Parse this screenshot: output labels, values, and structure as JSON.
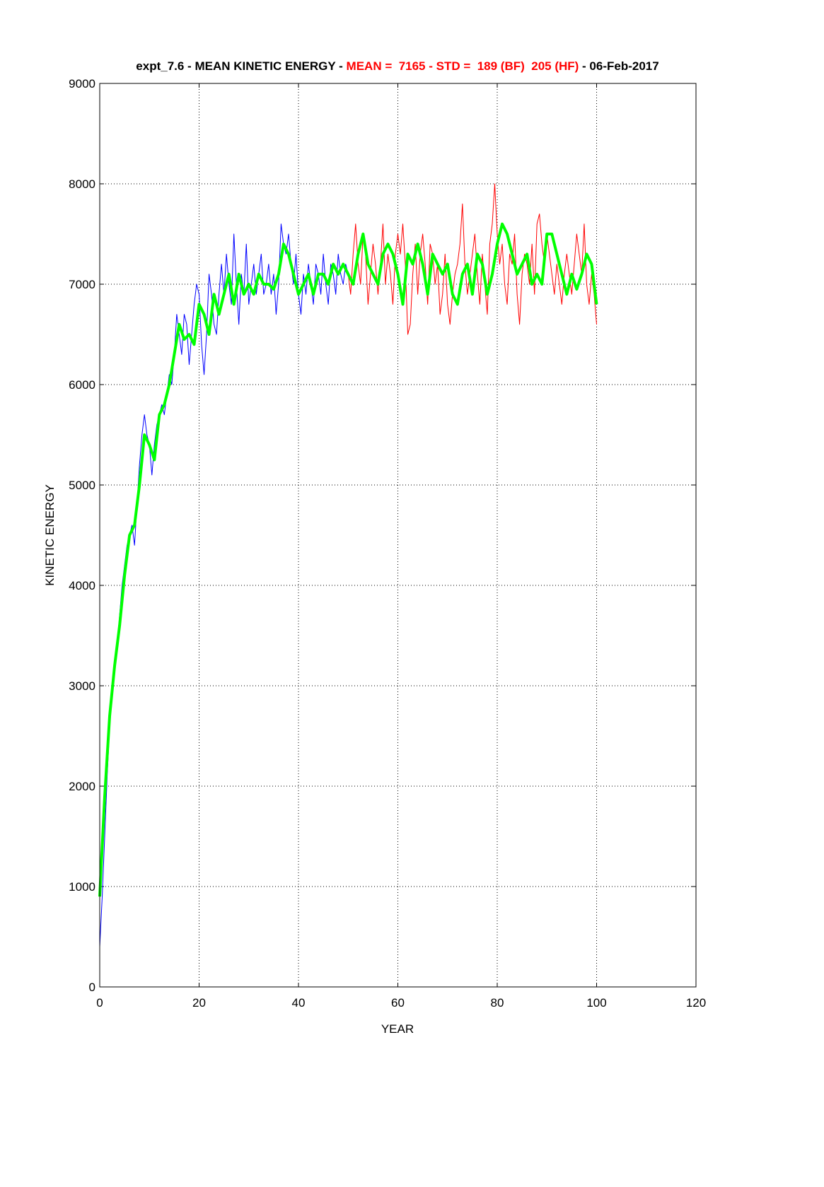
{
  "chart_data": {
    "type": "line",
    "title": [
      {
        "text": "expt_7.6 - MEAN KINETIC ENERGY - ",
        "color": "#000000"
      },
      {
        "text": "MEAN =  7165 - STD =  189 (BF)  205 (HF)",
        "color": "#ff0000"
      },
      {
        "text": " - 06-Feb-2017",
        "color": "#000000"
      }
    ],
    "xlabel": "YEAR",
    "ylabel": "KINETIC ENERGY",
    "xlim": [
      0,
      120
    ],
    "xticks": [
      0,
      20,
      40,
      60,
      80,
      100,
      120
    ],
    "ylim": [
      0,
      9000
    ],
    "yticks": [
      0,
      1000,
      2000,
      3000,
      4000,
      5000,
      6000,
      7000,
      8000,
      9000
    ],
    "grid": true,
    "series": [
      {
        "color": "#0000ff",
        "width": 1,
        "x": [
          0,
          0.5,
          1,
          1.5,
          2,
          2.5,
          3,
          3.5,
          4,
          4.5,
          5,
          5.5,
          6,
          6.5,
          7,
          7.5,
          8,
          8.5,
          9,
          9.5,
          10,
          10.5,
          11,
          11.5,
          12,
          12.5,
          13,
          13.5,
          14,
          14.5,
          15,
          15.5,
          16,
          16.5,
          17,
          17.5,
          18,
          18.5,
          19,
          19.5,
          20,
          20.5,
          21,
          21.5,
          22,
          22.5,
          23,
          23.5,
          24,
          24.5,
          25,
          25.5,
          26,
          26.5,
          27,
          27.5,
          28,
          28.5,
          29,
          29.5,
          30,
          30.5,
          31,
          31.5,
          32,
          32.5,
          33,
          33.5,
          34,
          34.5,
          35,
          35.5,
          36,
          36.5,
          37,
          37.5,
          38,
          38.5,
          39,
          39.5,
          40,
          40.5,
          41,
          41.5,
          42,
          42.5,
          43,
          43.5,
          44,
          44.5,
          45,
          45.5,
          46,
          46.5,
          47,
          47.5,
          48,
          48.5,
          49,
          49.5,
          50
        ],
        "values": [
          400,
          900,
          1500,
          2100,
          2600,
          2900,
          3200,
          3400,
          3700,
          4000,
          4200,
          4400,
          4500,
          4600,
          4400,
          4800,
          5200,
          5500,
          5700,
          5500,
          5400,
          5100,
          5400,
          5600,
          5700,
          5800,
          5700,
          5900,
          6100,
          6000,
          6300,
          6700,
          6500,
          6300,
          6700,
          6600,
          6200,
          6500,
          6800,
          7000,
          6900,
          6400,
          6100,
          6500,
          7100,
          6900,
          6600,
          6500,
          6900,
          7200,
          6900,
          7300,
          7000,
          6800,
          7500,
          7000,
          6600,
          7100,
          6900,
          7400,
          6800,
          7000,
          7200,
          6900,
          7100,
          7300,
          6900,
          7000,
          7200,
          6900,
          7100,
          6700,
          7000,
          7600,
          7400,
          7300,
          7500,
          7200,
          7000,
          7300,
          6900,
          6700,
          7100,
          6900,
          7200,
          7000,
          6800,
          7200,
          7100,
          6900,
          7300,
          7000,
          6800,
          7200,
          7100,
          6900,
          7300,
          7100,
          7000,
          7200,
          7100
        ]
      },
      {
        "color": "#ff0000",
        "width": 1,
        "x": [
          50,
          50.5,
          51,
          51.5,
          52,
          52.5,
          53,
          53.5,
          54,
          54.5,
          55,
          55.5,
          56,
          56.5,
          57,
          57.5,
          58,
          58.5,
          59,
          59.5,
          60,
          60.5,
          61,
          61.5,
          62,
          62.5,
          63,
          63.5,
          64,
          64.5,
          65,
          65.5,
          66,
          66.5,
          67,
          67.5,
          68,
          68.5,
          69,
          69.5,
          70,
          70.5,
          71,
          71.5,
          72,
          72.5,
          73,
          73.5,
          74,
          74.5,
          75,
          75.5,
          76,
          76.5,
          77,
          77.5,
          78,
          78.5,
          79,
          79.5,
          80,
          80.5,
          81,
          81.5,
          82,
          82.5,
          83,
          83.5,
          84,
          84.5,
          85,
          85.5,
          86,
          86.5,
          87,
          87.5,
          88,
          88.5,
          89,
          89.5,
          90,
          90.5,
          91,
          91.5,
          92,
          92.5,
          93,
          93.5,
          94,
          94.5,
          95,
          95.5,
          96,
          96.5,
          97,
          97.5,
          98,
          98.5,
          99,
          99.5,
          100
        ],
        "values": [
          7100,
          6900,
          7300,
          7600,
          7200,
          7000,
          7500,
          7300,
          6800,
          7100,
          7400,
          7200,
          6900,
          7200,
          7600,
          7000,
          7300,
          7100,
          6800,
          7300,
          7500,
          7300,
          7600,
          7200,
          6500,
          6600,
          7100,
          7400,
          6900,
          7300,
          7500,
          7200,
          6800,
          7400,
          7300,
          7000,
          7200,
          6700,
          6900,
          7300,
          6800,
          6600,
          6900,
          7100,
          7200,
          7400,
          7800,
          7200,
          6900,
          7100,
          7300,
          7500,
          7100,
          6800,
          7300,
          7000,
          6700,
          7400,
          7600,
          8000,
          7500,
          7200,
          7400,
          7000,
          6800,
          7300,
          7200,
          7500,
          6900,
          6600,
          7100,
          7300,
          7200,
          7000,
          7400,
          6900,
          7600,
          7700,
          7400,
          7200,
          7500,
          7300,
          7100,
          6900,
          7200,
          7000,
          6800,
          7100,
          7300,
          7100,
          6900,
          7200,
          7500,
          7300,
          7100,
          7600,
          7000,
          6800,
          7100,
          6900,
          6600
        ]
      },
      {
        "color": "#00ff00",
        "width": 4,
        "x": [
          0,
          1,
          2,
          3,
          4,
          5,
          6,
          7,
          8,
          9,
          10,
          11,
          12,
          13,
          14,
          15,
          16,
          17,
          18,
          19,
          20,
          21,
          22,
          23,
          24,
          25,
          26,
          27,
          28,
          29,
          30,
          31,
          32,
          33,
          34,
          35,
          36,
          37,
          38,
          39,
          40,
          41,
          42,
          43,
          44,
          45,
          46,
          47,
          48,
          49,
          50,
          51,
          52,
          53,
          54,
          55,
          56,
          57,
          58,
          59,
          60,
          61,
          62,
          63,
          64,
          65,
          66,
          67,
          68,
          69,
          70,
          71,
          72,
          73,
          74,
          75,
          76,
          77,
          78,
          79,
          80,
          81,
          82,
          83,
          84,
          85,
          86,
          87,
          88,
          89,
          90,
          91,
          92,
          93,
          94,
          95,
          96,
          97,
          98,
          99,
          100
        ],
        "values": [
          900,
          1900,
          2700,
          3200,
          3600,
          4100,
          4500,
          4600,
          5000,
          5500,
          5400,
          5250,
          5700,
          5800,
          6000,
          6300,
          6600,
          6450,
          6500,
          6400,
          6800,
          6700,
          6500,
          6900,
          6700,
          6900,
          7100,
          6800,
          7100,
          6900,
          7000,
          6900,
          7100,
          7000,
          7000,
          6950,
          7100,
          7400,
          7300,
          7100,
          6900,
          7000,
          7100,
          6900,
          7100,
          7100,
          7000,
          7200,
          7100,
          7200,
          7100,
          7000,
          7300,
          7500,
          7200,
          7100,
          7000,
          7300,
          7400,
          7300,
          7100,
          6800,
          7300,
          7200,
          7400,
          7200,
          6900,
          7300,
          7200,
          7100,
          7200,
          6900,
          6800,
          7100,
          7200,
          6900,
          7300,
          7200,
          6900,
          7100,
          7400,
          7600,
          7500,
          7300,
          7100,
          7200,
          7300,
          7000,
          7100,
          7000,
          7500,
          7500,
          7300,
          7100,
          6900,
          7100,
          6950,
          7100,
          7300,
          7200,
          6800
        ]
      }
    ]
  }
}
